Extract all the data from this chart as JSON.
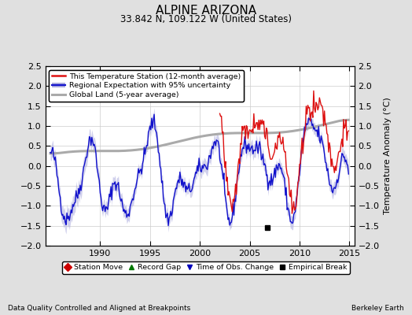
{
  "title": "ALPINE ARIZONA",
  "subtitle": "33.842 N, 109.122 W (United States)",
  "xlabel_left": "Data Quality Controlled and Aligned at Breakpoints",
  "xlabel_right": "Berkeley Earth",
  "ylabel": "Temperature Anomaly (°C)",
  "xlim": [
    1984.5,
    2015.5
  ],
  "ylim": [
    -2.0,
    2.5
  ],
  "yticks": [
    -2,
    -1.5,
    -1,
    -0.5,
    0,
    0.5,
    1,
    1.5,
    2,
    2.5
  ],
  "xticks": [
    1990,
    1995,
    2000,
    2005,
    2010,
    2015
  ],
  "bg_color": "#e0e0e0",
  "plot_bg_color": "#ffffff",
  "red_color": "#dd1111",
  "blue_color": "#1111cc",
  "blue_fill_color": "#aaaadd",
  "gray_color": "#aaaaaa",
  "empirical_break_x": 2006.75,
  "empirical_break_y": -1.55,
  "legend1_labels": [
    "This Temperature Station (12-month average)",
    "Regional Expectation with 95% uncertainty",
    "Global Land (5-year average)"
  ],
  "legend2_labels": [
    "Station Move",
    "Record Gap",
    "Time of Obs. Change",
    "Empirical Break"
  ],
  "title_fontsize": 11,
  "subtitle_fontsize": 8.5,
  "ylabel_fontsize": 8,
  "tick_fontsize": 8
}
